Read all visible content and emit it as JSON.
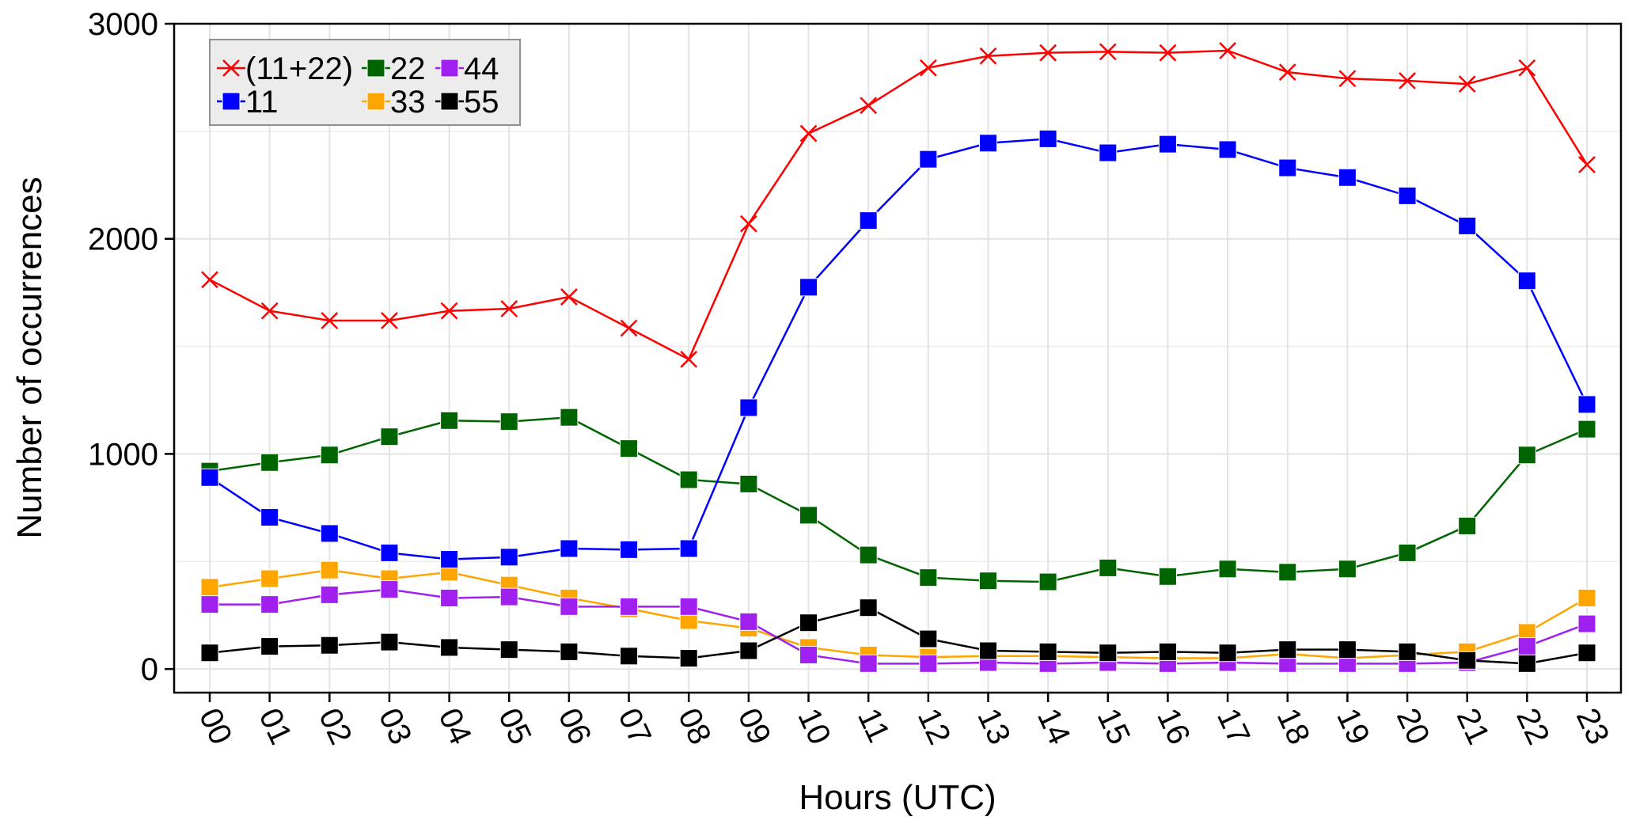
{
  "chart_data": {
    "type": "line",
    "title": "",
    "xlabel": "Hours (UTC)",
    "ylabel": "Number of occurrences",
    "ylim": [
      -110,
      3000
    ],
    "yticks": [
      0,
      1000,
      2000,
      3000
    ],
    "grid": true,
    "legend_position": "top-left",
    "categories": [
      "00",
      "01",
      "02",
      "03",
      "04",
      "05",
      "06",
      "07",
      "08",
      "09",
      "10",
      "11",
      "12",
      "13",
      "14",
      "15",
      "16",
      "17",
      "18",
      "19",
      "20",
      "21",
      "22",
      "23"
    ],
    "series": [
      {
        "name": "(11+22)",
        "color": "#ff0000",
        "marker": "x",
        "values": [
          1810,
          1665,
          1620,
          1620,
          1665,
          1675,
          1730,
          1585,
          1440,
          2070,
          2490,
          2620,
          2795,
          2850,
          2865,
          2870,
          2865,
          2875,
          2775,
          2745,
          2735,
          2720,
          2795,
          2345
        ]
      },
      {
        "name": "22",
        "color": "#006400",
        "marker": "square",
        "values": [
          920,
          960,
          995,
          1080,
          1155,
          1150,
          1170,
          1025,
          880,
          860,
          715,
          530,
          425,
          410,
          405,
          470,
          430,
          465,
          450,
          465,
          540,
          665,
          995,
          1115
        ]
      },
      {
        "name": "44",
        "color": "#a020f0",
        "marker": "square",
        "values": [
          300,
          300,
          345,
          370,
          330,
          335,
          290,
          290,
          290,
          220,
          65,
          25,
          25,
          30,
          25,
          30,
          25,
          30,
          25,
          25,
          25,
          30,
          105,
          210
        ]
      },
      {
        "name": "11",
        "color": "#0000ff",
        "marker": "square",
        "values": [
          890,
          705,
          630,
          540,
          510,
          520,
          560,
          555,
          560,
          1215,
          1775,
          2085,
          2370,
          2445,
          2465,
          2400,
          2440,
          2415,
          2330,
          2285,
          2200,
          2060,
          1805,
          1230
        ]
      },
      {
        "name": "33",
        "color": "#ffa500",
        "marker": "square",
        "values": [
          380,
          420,
          460,
          420,
          450,
          390,
          330,
          280,
          225,
          190,
          100,
          65,
          55,
          60,
          60,
          55,
          50,
          50,
          70,
          50,
          65,
          80,
          170,
          330
        ]
      },
      {
        "name": "55",
        "color": "#000000",
        "marker": "square",
        "values": [
          75,
          105,
          110,
          125,
          100,
          90,
          80,
          60,
          50,
          85,
          215,
          285,
          140,
          85,
          80,
          75,
          80,
          75,
          90,
          90,
          80,
          40,
          25,
          75
        ]
      }
    ]
  }
}
